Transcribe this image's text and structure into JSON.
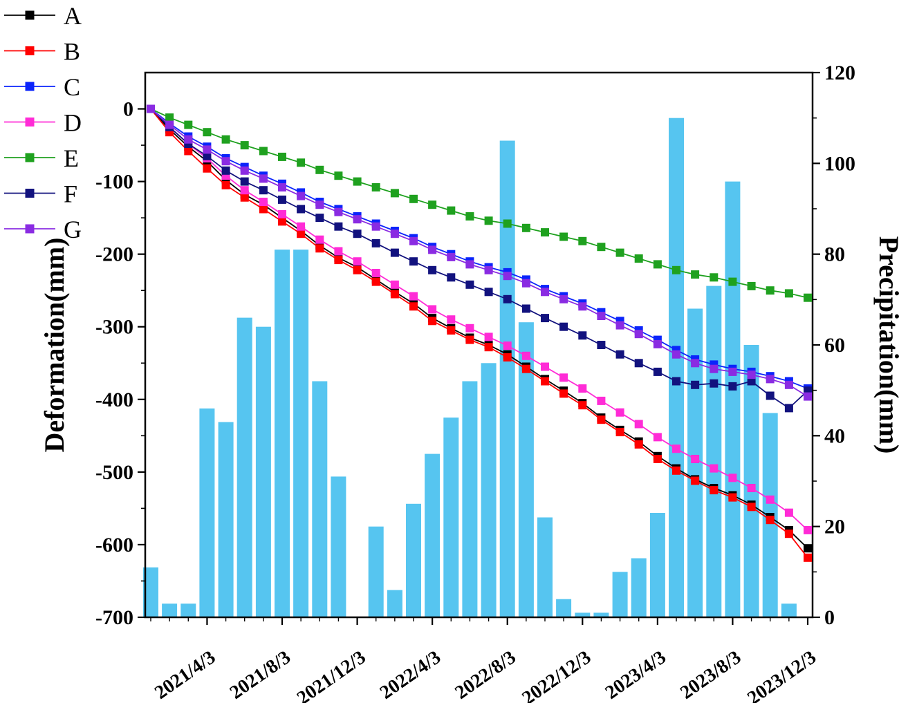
{
  "chart_data": {
    "type": "line+bar",
    "title": "",
    "x_dates": [
      "2021/1/3",
      "2021/2/3",
      "2021/3/3",
      "2021/4/3",
      "2021/5/3",
      "2021/6/3",
      "2021/7/3",
      "2021/8/3",
      "2021/9/3",
      "2021/10/3",
      "2021/11/3",
      "2021/12/3",
      "2022/1/3",
      "2022/2/3",
      "2022/3/3",
      "2022/4/3",
      "2022/5/3",
      "2022/6/3",
      "2022/7/3",
      "2022/8/3",
      "2022/9/3",
      "2022/10/3",
      "2022/11/3",
      "2022/12/3",
      "2023/1/3",
      "2023/2/3",
      "2023/3/3",
      "2023/4/3",
      "2023/5/3",
      "2023/6/3",
      "2023/7/3",
      "2023/8/3",
      "2023/9/3",
      "2023/10/3",
      "2023/11/3",
      "2023/12/3"
    ],
    "x_major_ticks": {
      "indices": [
        3,
        7,
        11,
        15,
        19,
        23,
        27,
        31,
        35
      ],
      "labels": [
        "2021/4/3",
        "2021/8/3",
        "2021/12/3",
        "2022/4/3",
        "2022/8/3",
        "2022/12/3",
        "2023/4/3",
        "2023/8/3",
        "2023/12/3"
      ]
    },
    "left_axis": {
      "label": "Deformation(mm)",
      "ticks": [
        0,
        -100,
        -200,
        -300,
        -400,
        -500,
        -600,
        -700
      ],
      "range": [
        50,
        -700
      ]
    },
    "right_axis": {
      "label": "Precipitation(mm)",
      "ticks": [
        120,
        100,
        80,
        60,
        40,
        20,
        0
      ],
      "range": [
        120,
        0
      ]
    },
    "series": [
      {
        "name": "A",
        "color": "#000000",
        "values": [
          0,
          -28,
          -52,
          -72,
          -98,
          -118,
          -132,
          -150,
          -168,
          -188,
          -205,
          -218,
          -235,
          -252,
          -268,
          -288,
          -302,
          -315,
          -325,
          -338,
          -355,
          -372,
          -388,
          -405,
          -425,
          -442,
          -458,
          -478,
          -495,
          -510,
          -522,
          -532,
          -545,
          -562,
          -580,
          -605
        ]
      },
      {
        "name": "B",
        "color": "#FF0000",
        "values": [
          0,
          -32,
          -58,
          -82,
          -105,
          -122,
          -138,
          -155,
          -172,
          -192,
          -208,
          -222,
          -238,
          -255,
          -272,
          -292,
          -305,
          -318,
          -328,
          -342,
          -358,
          -375,
          -392,
          -408,
          -428,
          -445,
          -462,
          -482,
          -498,
          -512,
          -525,
          -535,
          -548,
          -566,
          -585,
          -618
        ]
      },
      {
        "name": "C",
        "color": "#0B24FB",
        "values": [
          0,
          -20,
          -38,
          -52,
          -68,
          -80,
          -92,
          -103,
          -115,
          -128,
          -138,
          -148,
          -158,
          -168,
          -178,
          -190,
          -200,
          -210,
          -218,
          -225,
          -235,
          -248,
          -258,
          -268,
          -280,
          -292,
          -305,
          -318,
          -332,
          -345,
          -352,
          -358,
          -362,
          -368,
          -375,
          -385
        ]
      },
      {
        "name": "D",
        "color": "#FF2BD6",
        "values": [
          0,
          -25,
          -48,
          -68,
          -92,
          -112,
          -128,
          -145,
          -162,
          -180,
          -196,
          -210,
          -226,
          -242,
          -258,
          -276,
          -290,
          -302,
          -314,
          -326,
          -340,
          -355,
          -370,
          -385,
          -402,
          -418,
          -434,
          -452,
          -468,
          -482,
          -495,
          -508,
          -522,
          -538,
          -556,
          -580
        ]
      },
      {
        "name": "E",
        "color": "#1FA11F",
        "values": [
          0,
          -12,
          -22,
          -32,
          -42,
          -50,
          -58,
          -66,
          -74,
          -84,
          -92,
          -100,
          -108,
          -116,
          -124,
          -132,
          -140,
          -148,
          -154,
          -158,
          -164,
          -170,
          -176,
          -182,
          -190,
          -198,
          -206,
          -214,
          -222,
          -228,
          -232,
          -238,
          -244,
          -250,
          -254,
          -260
        ]
      },
      {
        "name": "F",
        "color": "#12127E",
        "values": [
          0,
          -25,
          -48,
          -65,
          -85,
          -100,
          -112,
          -125,
          -138,
          -150,
          -162,
          -172,
          -185,
          -198,
          -210,
          -222,
          -232,
          -242,
          -252,
          -262,
          -275,
          -288,
          -300,
          -312,
          -325,
          -338,
          -350,
          -362,
          -375,
          -380,
          -378,
          -382,
          -375,
          -395,
          -412,
          -388
        ]
      },
      {
        "name": "G",
        "color": "#8A2BE2",
        "values": [
          0,
          -22,
          -42,
          -56,
          -72,
          -85,
          -96,
          -108,
          -120,
          -132,
          -142,
          -152,
          -162,
          -172,
          -182,
          -194,
          -204,
          -214,
          -222,
          -230,
          -240,
          -252,
          -262,
          -272,
          -285,
          -298,
          -310,
          -324,
          -338,
          -350,
          -358,
          -362,
          -366,
          -372,
          -380,
          -396
        ]
      }
    ],
    "precipitation": {
      "name": "Precipitation",
      "color": "#56C5F0",
      "values": [
        11,
        3,
        3,
        46,
        43,
        66,
        64,
        81,
        81,
        52,
        31,
        0,
        20,
        6,
        25,
        36,
        44,
        52,
        56,
        105,
        65,
        22,
        4,
        1,
        1,
        10,
        13,
        23,
        110,
        68,
        73,
        96,
        60,
        45,
        3,
        0
      ]
    },
    "legend_position": "top-left",
    "grid": "off"
  }
}
